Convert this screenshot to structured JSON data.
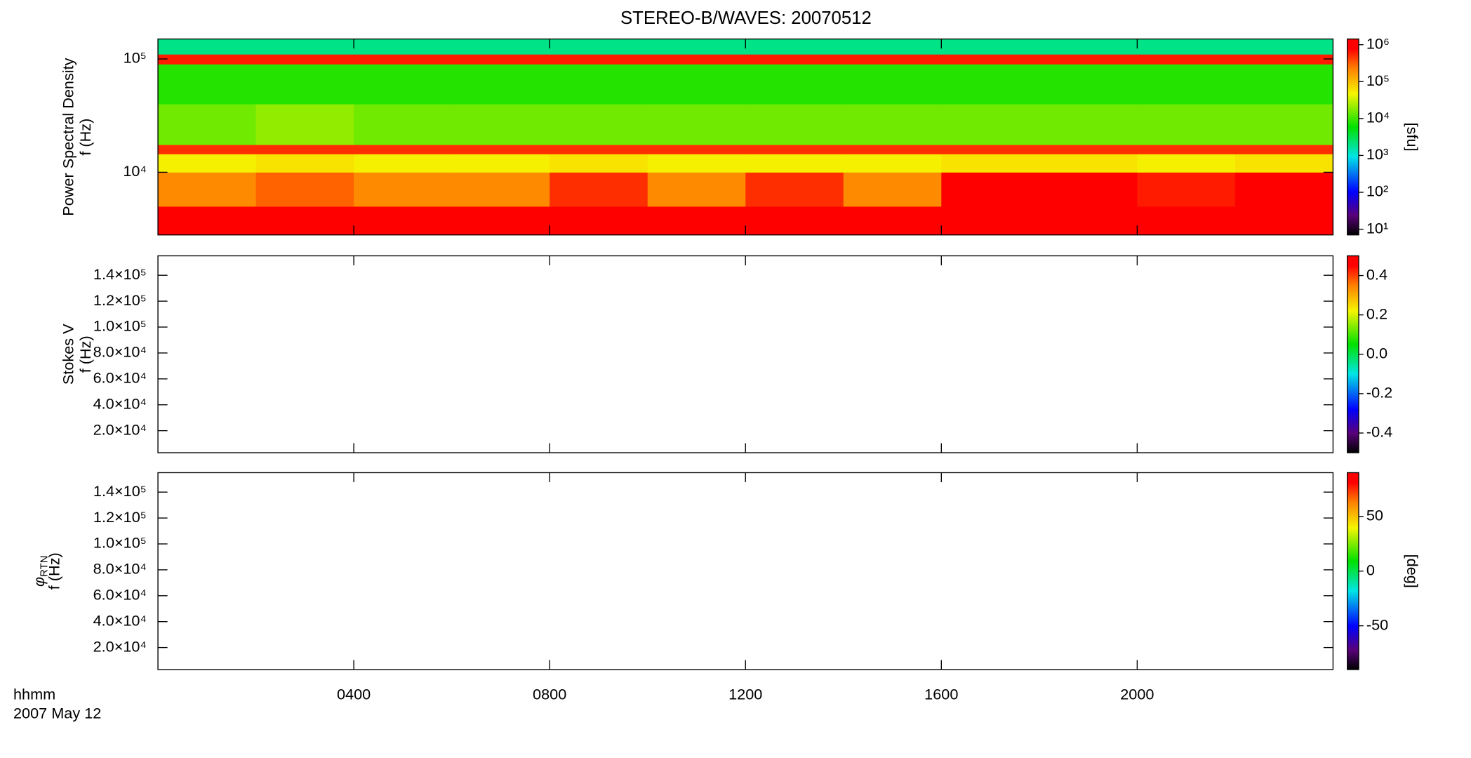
{
  "chart_data": [
    {
      "type": "heatmap",
      "title": "STEREO-B/WAVES: 20070512",
      "ylabel": "Power Spectral Density",
      "ylabel_unit": "f (Hz)",
      "log_y": true,
      "ylim": [
        2800,
        150000
      ],
      "yticks": [
        {
          "value": 10000,
          "label": "10⁴"
        },
        {
          "value": 100000,
          "label": "10⁵"
        }
      ],
      "x_edges": [
        0,
        2,
        4,
        6,
        8,
        10,
        12,
        14,
        16,
        18,
        20,
        22,
        24
      ],
      "y_edges": [
        2800,
        5000,
        10000,
        14500,
        17500,
        40000,
        90000,
        110000,
        150000
      ],
      "z": [
        [
          1000000,
          900000,
          1000000,
          800000,
          1000000,
          1000000,
          900000,
          800000,
          1000000,
          1000000,
          1000000,
          1000000
        ],
        [
          200000,
          300000,
          200000,
          200000,
          500000,
          200000,
          500000,
          200000,
          1000000,
          1000000,
          600000,
          1000000
        ],
        [
          50000,
          60000,
          50000,
          50000,
          60000,
          50000,
          50000,
          50000,
          60000,
          60000,
          50000,
          60000
        ],
        [
          500000,
          500000,
          500000,
          500000,
          500000,
          500000,
          500000,
          500000,
          500000,
          500000,
          500000,
          500000
        ],
        [
          15000,
          20000,
          15000,
          15000,
          15000,
          15000,
          15000,
          15000,
          15000,
          15000,
          15000,
          15000
        ],
        [
          8000,
          8000,
          8000,
          8000,
          8000,
          8000,
          8000,
          8000,
          8000,
          8000,
          8000,
          8000
        ],
        [
          600000,
          600000,
          600000,
          600000,
          600000,
          600000,
          600000,
          600000,
          600000,
          600000,
          600000,
          600000
        ],
        [
          2000,
          2000,
          2000,
          2000,
          2000,
          2000,
          2000,
          2000,
          2000,
          2000,
          2000,
          2000
        ]
      ],
      "colorbar": {
        "log": true,
        "lim": [
          7,
          1430000
        ],
        "label": "[sfu]",
        "ticks": [
          {
            "value": 10,
            "label": "10¹"
          },
          {
            "value": 100,
            "label": "10²"
          },
          {
            "value": 1000,
            "label": "10³"
          },
          {
            "value": 10000,
            "label": "10⁴"
          },
          {
            "value": 100000,
            "label": "10⁵"
          },
          {
            "value": 1000000,
            "label": "10⁶"
          }
        ]
      }
    },
    {
      "type": "heatmap",
      "ylabel": "Stokes V",
      "ylabel_unit": "f (Hz)",
      "log_y": false,
      "ylim": [
        3000,
        155000
      ],
      "yticks": [
        {
          "value": 20000,
          "label": "2.0×10⁴"
        },
        {
          "value": 40000,
          "label": "4.0×10⁴"
        },
        {
          "value": 60000,
          "label": "6.0×10⁴"
        },
        {
          "value": 80000,
          "label": "8.0×10⁴"
        },
        {
          "value": 100000,
          "label": "1.0×10⁵"
        },
        {
          "value": 120000,
          "label": "1.2×10⁵"
        },
        {
          "value": 140000,
          "label": "1.4×10⁵"
        }
      ],
      "colorbar": {
        "log": false,
        "lim": [
          -0.5,
          0.5
        ],
        "ticks": [
          -0.4,
          -0.2,
          {
            "value": 0,
            "label": "0.0"
          },
          0.2,
          0.4
        ]
      }
    },
    {
      "type": "heatmap",
      "ylabel_symbol": "φ",
      "ylabel_subscript": "RTN",
      "ylabel_unit": "f (Hz)",
      "log_y": false,
      "ylim": [
        3000,
        155000
      ],
      "yticks": [
        {
          "value": 20000,
          "label": "2.0×10⁴"
        },
        {
          "value": 40000,
          "label": "4.0×10⁴"
        },
        {
          "value": 60000,
          "label": "6.0×10⁴"
        },
        {
          "value": 80000,
          "label": "8.0×10⁴"
        },
        {
          "value": 100000,
          "label": "1.0×10⁵"
        },
        {
          "value": 120000,
          "label": "1.2×10⁵"
        },
        {
          "value": 140000,
          "label": "1.4×10⁵"
        }
      ],
      "colorbar": {
        "log": false,
        "lim": [
          -90,
          90
        ],
        "label": "[deg]",
        "ticks": [
          -50,
          0,
          50
        ]
      },
      "xlabel": "hhmm",
      "date": "2007 May 12",
      "xlim": [
        0,
        24
      ],
      "xticks": [
        {
          "value": 4,
          "label": "0400"
        },
        {
          "value": 8,
          "label": "0800"
        },
        {
          "value": 12,
          "label": "1200"
        },
        {
          "value": 16,
          "label": "1600"
        },
        {
          "value": 20,
          "label": "2000"
        }
      ]
    }
  ]
}
